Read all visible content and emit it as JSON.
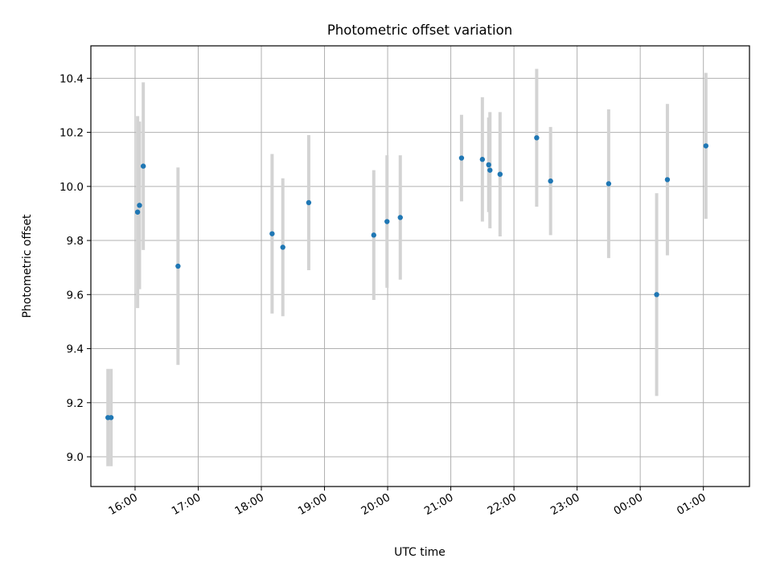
{
  "chart_data": {
    "type": "scatter",
    "title": "Photometric offset variation",
    "xlabel": "UTC time",
    "ylabel": "Photometric offset",
    "x_axis": {
      "unit": "hours UTC (values past 24 continue into next day)",
      "range": [
        15.3,
        25.73
      ],
      "ticks": [
        16,
        17,
        18,
        19,
        20,
        21,
        22,
        23,
        24,
        25
      ],
      "tick_labels": [
        "16:00",
        "17:00",
        "18:00",
        "19:00",
        "20:00",
        "21:00",
        "22:00",
        "23:00",
        "00:00",
        "01:00"
      ]
    },
    "y_axis": {
      "range": [
        8.89,
        10.52
      ],
      "ticks": [
        9.0,
        9.2,
        9.4,
        9.6,
        9.8,
        10.0,
        10.2,
        10.4
      ],
      "tick_labels": [
        "9.0",
        "9.2",
        "9.4",
        "9.6",
        "9.8",
        "10.0",
        "10.2",
        "10.4"
      ]
    },
    "grid": true,
    "marker_color": "#1f77b4",
    "errorbar_color": "#d3d3d3",
    "points": [
      {
        "x": 15.57,
        "y": 9.145,
        "err": 0.18
      },
      {
        "x": 15.62,
        "y": 9.145,
        "err": 0.18
      },
      {
        "x": 16.04,
        "y": 9.905,
        "err": 0.355
      },
      {
        "x": 16.07,
        "y": 9.93,
        "err": 0.31
      },
      {
        "x": 16.13,
        "y": 10.075,
        "err": 0.31
      },
      {
        "x": 16.68,
        "y": 9.705,
        "err": 0.365
      },
      {
        "x": 18.17,
        "y": 9.825,
        "err": 0.295
      },
      {
        "x": 18.34,
        "y": 9.775,
        "err": 0.255
      },
      {
        "x": 18.75,
        "y": 9.94,
        "err": 0.25
      },
      {
        "x": 19.78,
        "y": 9.82,
        "err": 0.24
      },
      {
        "x": 19.99,
        "y": 9.87,
        "err": 0.245
      },
      {
        "x": 20.2,
        "y": 9.885,
        "err": 0.23
      },
      {
        "x": 21.17,
        "y": 10.105,
        "err": 0.16
      },
      {
        "x": 21.5,
        "y": 10.1,
        "err": 0.23
      },
      {
        "x": 21.6,
        "y": 10.08,
        "err": 0.175
      },
      {
        "x": 21.62,
        "y": 10.06,
        "err": 0.215
      },
      {
        "x": 21.78,
        "y": 10.045,
        "err": 0.23
      },
      {
        "x": 22.36,
        "y": 10.18,
        "err": 0.255
      },
      {
        "x": 22.58,
        "y": 10.02,
        "err": 0.2
      },
      {
        "x": 23.5,
        "y": 10.01,
        "err": 0.275
      },
      {
        "x": 24.26,
        "y": 9.6,
        "err": 0.375
      },
      {
        "x": 24.43,
        "y": 10.025,
        "err": 0.28
      },
      {
        "x": 25.04,
        "y": 10.15,
        "err": 0.27
      }
    ]
  }
}
